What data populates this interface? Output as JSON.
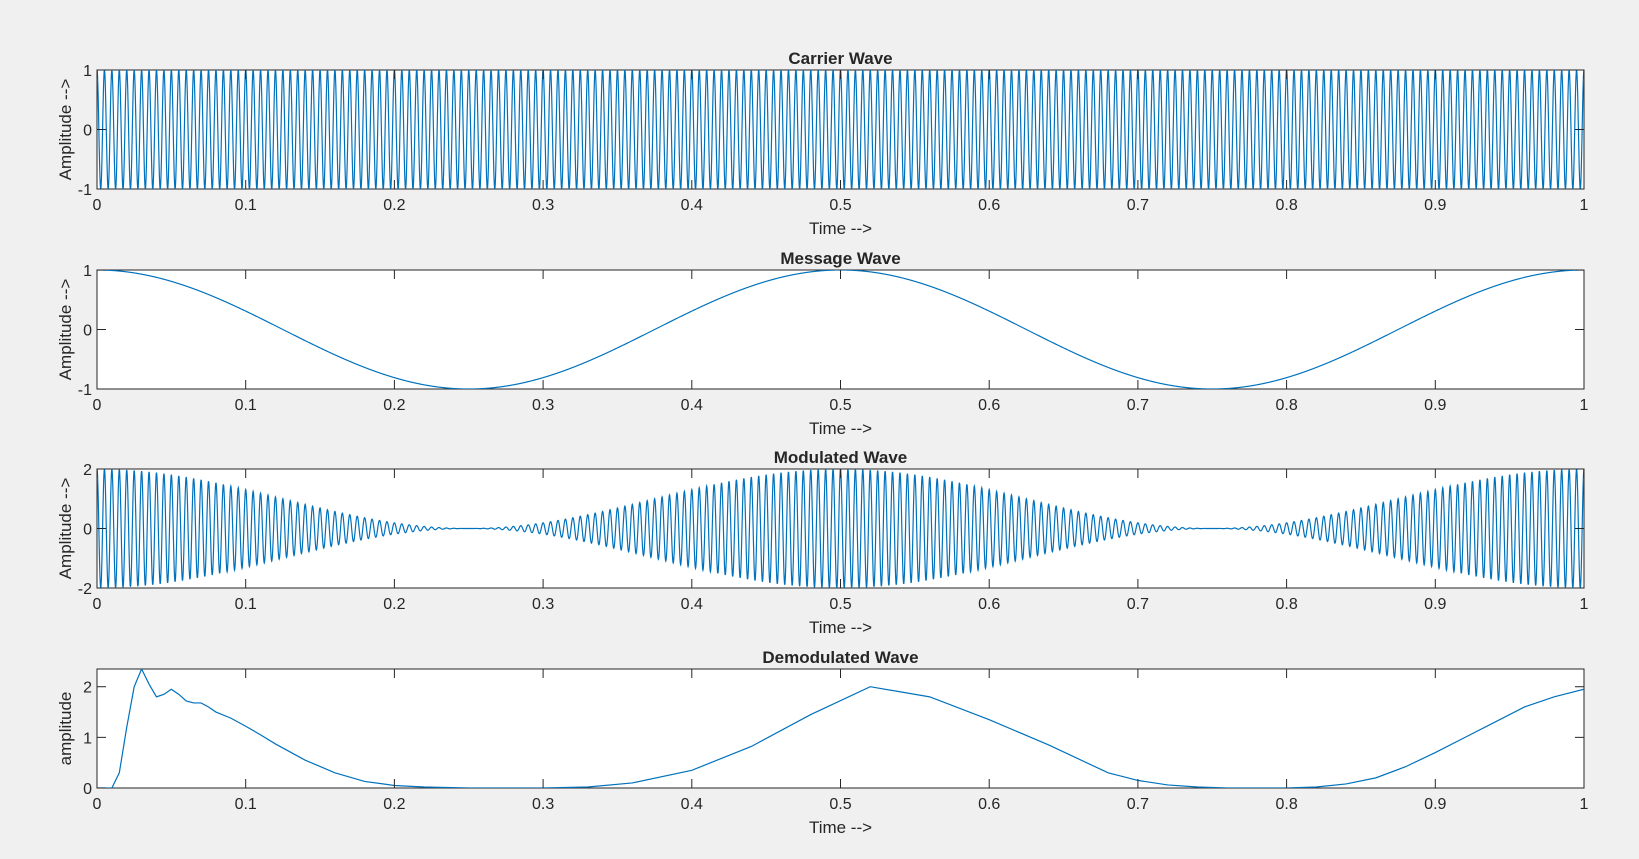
{
  "figure": {
    "background": "#f0f0f0",
    "axes_color": "#262626",
    "line_color": "#0072bd"
  },
  "chart_data": [
    {
      "type": "line",
      "title": "Carrier Wave",
      "xlabel": "Time -->",
      "ylabel": "Amplitude -->",
      "xlim": [
        0,
        1
      ],
      "ylim": [
        -1,
        1
      ],
      "xticks": [
        "0",
        "0.1",
        "0.2",
        "0.3",
        "0.4",
        "0.5",
        "0.6",
        "0.7",
        "0.8",
        "0.9",
        "1"
      ],
      "yticks": [
        "-1",
        "0",
        "1"
      ],
      "series": [
        {
          "function": "cos(2*pi*fc*t)",
          "fc": 200,
          "amplitude": 1
        }
      ]
    },
    {
      "type": "line",
      "title": "Message Wave",
      "xlabel": "Time -->",
      "ylabel": "Amplitude -->",
      "xlim": [
        0,
        1
      ],
      "ylim": [
        -1,
        1
      ],
      "xticks": [
        "0",
        "0.1",
        "0.2",
        "0.3",
        "0.4",
        "0.5",
        "0.6",
        "0.7",
        "0.8",
        "0.9",
        "1"
      ],
      "yticks": [
        "-1",
        "0",
        "1"
      ],
      "series": [
        {
          "function": "cos(2*pi*fm*t)",
          "fm": 2,
          "amplitude": 1
        }
      ]
    },
    {
      "type": "line",
      "title": "Modulated Wave",
      "xlabel": "Time -->",
      "ylabel": "Amplitude -->",
      "xlim": [
        0,
        1
      ],
      "ylim": [
        -2,
        2
      ],
      "xticks": [
        "0",
        "0.1",
        "0.2",
        "0.3",
        "0.4",
        "0.5",
        "0.6",
        "0.7",
        "0.8",
        "0.9",
        "1"
      ],
      "yticks": [
        "-2",
        "0",
        "2"
      ],
      "series": [
        {
          "function": "(1+cos(2*pi*fm*t))*cos(2*pi*fc*t)",
          "fc": 200,
          "fm": 2
        }
      ]
    },
    {
      "type": "line",
      "title": "Demodulated Wave",
      "xlabel": "Time -->",
      "ylabel": "amplitude",
      "xlim": [
        0,
        1
      ],
      "ylim": [
        0,
        2.35
      ],
      "xticks": [
        "0",
        "0.1",
        "0.2",
        "0.3",
        "0.4",
        "0.5",
        "0.6",
        "0.7",
        "0.8",
        "0.9",
        "1"
      ],
      "yticks": [
        "0",
        "1",
        "2"
      ],
      "series": [
        {
          "x": [
            0,
            0.01,
            0.015,
            0.02,
            0.025,
            0.03,
            0.035,
            0.04,
            0.045,
            0.05,
            0.055,
            0.06,
            0.065,
            0.07,
            0.075,
            0.08,
            0.09,
            0.1,
            0.11,
            0.12,
            0.14,
            0.16,
            0.18,
            0.2,
            0.22,
            0.25,
            0.28,
            0.3,
            0.33,
            0.36,
            0.4,
            0.44,
            0.48,
            0.52,
            0.56,
            0.6,
            0.64,
            0.68,
            0.7,
            0.72,
            0.74,
            0.76,
            0.78,
            0.8,
            0.82,
            0.84,
            0.86,
            0.88,
            0.9,
            0.92,
            0.94,
            0.96,
            0.98,
            1.0
          ],
          "y": [
            0,
            0,
            0.3,
            1.2,
            2.0,
            2.35,
            2.05,
            1.8,
            1.85,
            1.95,
            1.85,
            1.72,
            1.68,
            1.68,
            1.6,
            1.5,
            1.38,
            1.22,
            1.05,
            0.87,
            0.55,
            0.3,
            0.13,
            0.05,
            0.02,
            0.0,
            0.0,
            0.0,
            0.02,
            0.1,
            0.35,
            0.82,
            1.45,
            2.0,
            1.8,
            1.35,
            0.85,
            0.3,
            0.15,
            0.06,
            0.02,
            0.0,
            0.0,
            0.0,
            0.02,
            0.08,
            0.2,
            0.42,
            0.7,
            1.0,
            1.3,
            1.6,
            1.8,
            1.95
          ]
        }
      ]
    }
  ]
}
